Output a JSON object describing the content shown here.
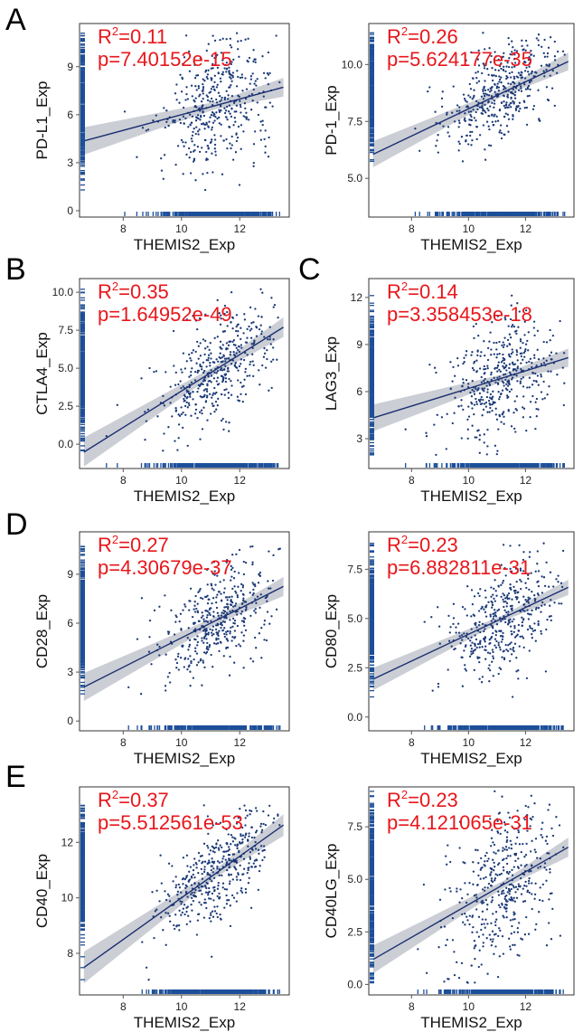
{
  "panel_letters": {
    "A": "A",
    "B": "B",
    "C": "C",
    "D": "D",
    "E": "E"
  },
  "colors": {
    "points": "#1c3a78",
    "rug": "#1c4f9a",
    "fit": "#1b2f72",
    "band": "#b9bec6",
    "annotation": "#e8161b"
  },
  "chart_data": [
    {
      "type": "scatter",
      "id": "pdl1",
      "xlabel": "THEMIS2_Exp",
      "ylabel": "PD-L1_Exp",
      "xlim": [
        6.5,
        13.7
      ],
      "ylim": [
        -0.4,
        11.7
      ],
      "xticks": [
        8,
        10,
        12
      ],
      "yticks": [
        0,
        3,
        6,
        9
      ],
      "ytick_labels": [
        "0",
        "3",
        "6",
        "9"
      ],
      "fit": {
        "intercept": 1.1,
        "slope": 0.49,
        "band": 0.45
      },
      "cluster": {
        "x_mean": 11.2,
        "x_sd": 0.95,
        "y_sd": 1.9,
        "y_min": 0.9,
        "y_max": 11.1
      },
      "annotation": {
        "r2_prefix": "R",
        "r2_sup": "2",
        "r2_value": "=0.11",
        "p_text": "p=7.40152e-15"
      }
    },
    {
      "type": "scatter",
      "id": "pd1",
      "xlabel": "THEMIS2_Exp",
      "ylabel": "PD-1_Exp",
      "xlim": [
        6.5,
        13.7
      ],
      "ylim": [
        3.3,
        11.8
      ],
      "xticks": [
        8,
        10,
        12
      ],
      "yticks": [
        5.0,
        7.5,
        10.0
      ],
      "ytick_labels": [
        "5.0",
        "7.5",
        "10.0"
      ],
      "fit": {
        "intercept": 2.1,
        "slope": 0.595,
        "band": 0.3
      },
      "cluster": {
        "x_mean": 11.2,
        "x_sd": 0.95,
        "y_sd": 1.0,
        "y_min": 4.9,
        "y_max": 11.4
      },
      "annotation": {
        "r2_prefix": "R",
        "r2_sup": "2",
        "r2_value": "=0.26",
        "p_text": "p=5.624177e-35"
      }
    },
    {
      "type": "scatter",
      "id": "ctla4",
      "xlabel": "THEMIS2_Exp",
      "ylabel": "CTLA4_Exp",
      "xlim": [
        6.5,
        13.7
      ],
      "ylim": [
        -1.6,
        10.9
      ],
      "xticks": [
        8,
        10,
        12
      ],
      "yticks": [
        0.0,
        2.5,
        5.0,
        7.5,
        10.0
      ],
      "ytick_labels": [
        "0.0",
        "2.5",
        "5.0",
        "7.5",
        "10.0"
      ],
      "fit": {
        "intercept": -8.5,
        "slope": 1.2,
        "band": 0.5
      },
      "cluster": {
        "x_mean": 11.2,
        "x_sd": 0.95,
        "y_sd": 1.8,
        "y_min": -0.5,
        "y_max": 10.2
      },
      "annotation": {
        "r2_prefix": "R",
        "r2_sup": "2",
        "r2_value": "=0.35",
        "p_text": "p=1.64952e-49"
      }
    },
    {
      "type": "scatter",
      "id": "lag3",
      "xlabel": "THEMIS2_Exp",
      "ylabel": "LAG3_Exp",
      "xlim": [
        6.5,
        13.7
      ],
      "ylim": [
        1.1,
        13.2
      ],
      "xticks": [
        8,
        10,
        12
      ],
      "yticks": [
        3,
        6,
        9,
        12
      ],
      "ytick_labels": [
        "3",
        "6",
        "9",
        "12"
      ],
      "fit": {
        "intercept": 0.6,
        "slope": 0.56,
        "band": 0.45
      },
      "cluster": {
        "x_mean": 11.2,
        "x_sd": 0.95,
        "y_sd": 1.8,
        "y_min": 1.8,
        "y_max": 12.5
      },
      "annotation": {
        "r2_prefix": "R",
        "r2_sup": "2",
        "r2_value": "=0.14",
        "p_text": "p=3.358453e-18"
      }
    },
    {
      "type": "scatter",
      "id": "cd28",
      "xlabel": "THEMIS2_Exp",
      "ylabel": "CD28_Exp",
      "xlim": [
        6.5,
        13.7
      ],
      "ylim": [
        -0.6,
        11.6
      ],
      "xticks": [
        8,
        10,
        12
      ],
      "yticks": [
        0,
        3,
        6,
        9
      ],
      "ytick_labels": [
        "0",
        "3",
        "6",
        "9"
      ],
      "fit": {
        "intercept": -3.9,
        "slope": 0.9,
        "band": 0.45
      },
      "cluster": {
        "x_mean": 11.2,
        "x_sd": 0.95,
        "y_sd": 1.6,
        "y_min": 0.9,
        "y_max": 11.0
      },
      "annotation": {
        "r2_prefix": "R",
        "r2_sup": "2",
        "r2_value": "=0.27",
        "p_text": "p=4.30679e-37"
      }
    },
    {
      "type": "scatter",
      "id": "cd80",
      "xlabel": "THEMIS2_Exp",
      "ylabel": "CD80_Exp",
      "xlim": [
        6.5,
        13.7
      ],
      "ylim": [
        -0.7,
        9.4
      ],
      "xticks": [
        8,
        10,
        12
      ],
      "yticks": [
        0.0,
        2.5,
        5.0,
        7.5
      ],
      "ytick_labels": [
        "0.0",
        "2.5",
        "5.0",
        "7.5"
      ],
      "fit": {
        "intercept": -2.6,
        "slope": 0.68,
        "band": 0.3
      },
      "cluster": {
        "x_mean": 11.2,
        "x_sd": 0.95,
        "y_sd": 1.4,
        "y_min": 0.0,
        "y_max": 9.0
      },
      "annotation": {
        "r2_prefix": "R",
        "r2_sup": "2",
        "r2_value": "=0.23",
        "p_text": "p=6.882811e-31"
      }
    },
    {
      "type": "scatter",
      "id": "cd40",
      "xlabel": "THEMIS2_Exp",
      "ylabel": "CD40_Exp",
      "xlim": [
        6.5,
        13.7
      ],
      "ylim": [
        6.5,
        14.0
      ],
      "xticks": [
        8,
        10,
        12
      ],
      "yticks": [
        8,
        10,
        12
      ],
      "ytick_labels": [
        "8",
        "10",
        "12"
      ],
      "fit": {
        "intercept": 2.5,
        "slope": 0.75,
        "band": 0.3
      },
      "cluster": {
        "x_mean": 11.2,
        "x_sd": 0.95,
        "y_sd": 0.9,
        "y_min": 7.0,
        "y_max": 13.5
      },
      "annotation": {
        "r2_prefix": "R",
        "r2_sup": "2",
        "r2_value": "=0.37",
        "p_text": "p=5.512561e-53"
      }
    },
    {
      "type": "scatter",
      "id": "cd40lg",
      "xlabel": "THEMIS2_Exp",
      "ylabel": "CD40LG_Exp",
      "xlim": [
        6.5,
        13.7
      ],
      "ylim": [
        -0.5,
        9.4
      ],
      "xticks": [
        8,
        10,
        12
      ],
      "yticks": [
        0.0,
        2.5,
        5.0,
        7.5
      ],
      "ytick_labels": [
        "0.0",
        "2.5",
        "5.0",
        "7.5"
      ],
      "fit": {
        "intercept": -4.0,
        "slope": 0.78,
        "band": 0.35
      },
      "cluster": {
        "x_mean": 11.2,
        "x_sd": 0.95,
        "y_sd": 1.7,
        "y_min": 0.0,
        "y_max": 9.2
      },
      "annotation": {
        "r2_prefix": "R",
        "r2_sup": "2",
        "r2_value": "=0.23",
        "p_text": "p=4.121065e-31"
      }
    }
  ]
}
